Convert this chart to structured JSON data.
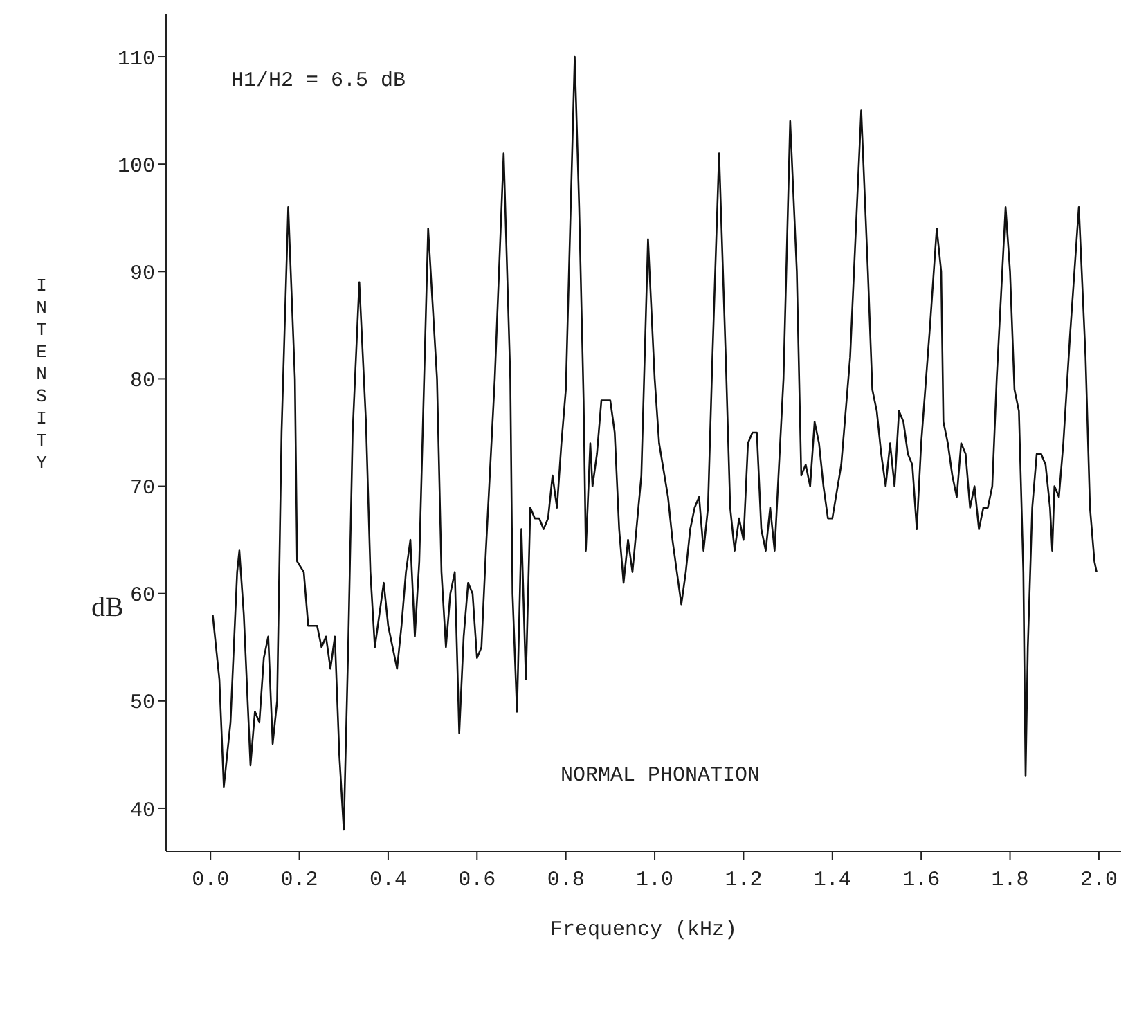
{
  "chart_data": {
    "type": "line",
    "xlabel": "Frequency (kHz)",
    "ylabel": "INTENSITY",
    "annotations": [
      "dB",
      "H1/H2 = 6.5 dB",
      "NORMAL PHONATION"
    ],
    "xlim": [
      -0.1,
      2.05
    ],
    "ylim": [
      36,
      114
    ],
    "xticks": [
      {
        "value": 0,
        "label": "0.0"
      },
      {
        "value": 0.2,
        "label": "0.2"
      },
      {
        "value": 0.4,
        "label": "0.4"
      },
      {
        "value": 0.6,
        "label": "0.6"
      },
      {
        "value": 0.8,
        "label": "0.8"
      },
      {
        "value": 1,
        "label": "1.0"
      },
      {
        "value": 1.2,
        "label": "1.2"
      },
      {
        "value": 1.4,
        "label": "1.4"
      },
      {
        "value": 1.6,
        "label": "1.6"
      },
      {
        "value": 1.8,
        "label": "1.8"
      },
      {
        "value": 2,
        "label": "2.0"
      }
    ],
    "yticks": [
      40,
      50,
      60,
      70,
      80,
      90,
      100,
      110
    ],
    "marker": "none",
    "line_style": "solid",
    "series": [
      {
        "color": "#111111",
        "x": [
          0.005,
          0.02,
          0.03,
          0.045,
          0.06,
          0.065,
          0.075,
          0.09,
          0.1,
          0.11,
          0.12,
          0.13,
          0.14,
          0.15,
          0.16,
          0.175,
          0.19,
          0.195,
          0.21,
          0.22,
          0.24,
          0.25,
          0.26,
          0.27,
          0.28,
          0.29,
          0.3,
          0.31,
          0.32,
          0.335,
          0.35,
          0.36,
          0.37,
          0.38,
          0.39,
          0.4,
          0.41,
          0.42,
          0.43,
          0.44,
          0.45,
          0.46,
          0.47,
          0.49,
          0.51,
          0.52,
          0.53,
          0.54,
          0.55,
          0.56,
          0.57,
          0.58,
          0.59,
          0.6,
          0.61,
          0.62,
          0.64,
          0.66,
          0.675,
          0.68,
          0.69,
          0.7,
          0.71,
          0.72,
          0.73,
          0.74,
          0.75,
          0.76,
          0.77,
          0.78,
          0.79,
          0.8,
          0.82,
          0.83,
          0.84,
          0.845,
          0.855,
          0.86,
          0.87,
          0.88,
          0.9,
          0.91,
          0.92,
          0.93,
          0.94,
          0.95,
          0.97,
          0.985,
          1,
          1.01,
          1.03,
          1.04,
          1.05,
          1.06,
          1.07,
          1.08,
          1.09,
          1.1,
          1.11,
          1.12,
          1.13,
          1.145,
          1.16,
          1.17,
          1.18,
          1.19,
          1.2,
          1.21,
          1.22,
          1.23,
          1.24,
          1.25,
          1.26,
          1.27,
          1.28,
          1.29,
          1.305,
          1.32,
          1.33,
          1.34,
          1.35,
          1.36,
          1.37,
          1.38,
          1.39,
          1.4,
          1.42,
          1.44,
          1.465,
          1.48,
          1.49,
          1.5,
          1.51,
          1.52,
          1.53,
          1.54,
          1.55,
          1.56,
          1.57,
          1.58,
          1.59,
          1.6,
          1.62,
          1.635,
          1.645,
          1.65,
          1.66,
          1.67,
          1.68,
          1.69,
          1.7,
          1.71,
          1.72,
          1.73,
          1.74,
          1.75,
          1.76,
          1.77,
          1.79,
          1.8,
          1.81,
          1.82,
          1.83,
          1.835,
          1.84,
          1.85,
          1.86,
          1.87,
          1.88,
          1.89,
          1.895,
          1.9,
          1.91,
          1.92,
          1.935,
          1.955,
          1.97,
          1.98,
          1.99,
          1.995
        ],
        "values": [
          58,
          52,
          42,
          48,
          62,
          64,
          58,
          44,
          49,
          48,
          54,
          56,
          46,
          50,
          75,
          96,
          80,
          63,
          62,
          57,
          57,
          55,
          56,
          53,
          56,
          45,
          38,
          55,
          75,
          89,
          76,
          62,
          55,
          58,
          61,
          57,
          55,
          53,
          57,
          62,
          65,
          56,
          63,
          94,
          80,
          62,
          55,
          60,
          62,
          47,
          56,
          61,
          60,
          54,
          55,
          64,
          80,
          101,
          80,
          60,
          49,
          66,
          52,
          68,
          67,
          67,
          66,
          67,
          71,
          68,
          74,
          79,
          110,
          96,
          78,
          64,
          74,
          70,
          73,
          78,
          78,
          75,
          66,
          61,
          65,
          62,
          71,
          93,
          80,
          74,
          69,
          65,
          62,
          59,
          62,
          66,
          68,
          69,
          64,
          68,
          82,
          101,
          82,
          68,
          64,
          67,
          65,
          74,
          75,
          75,
          66,
          64,
          68,
          64,
          72,
          80,
          104,
          90,
          71,
          72,
          70,
          76,
          74,
          70,
          67,
          67,
          72,
          82,
          105,
          90,
          79,
          77,
          73,
          70,
          74,
          70,
          77,
          76,
          73,
          72,
          66,
          74,
          85,
          94,
          90,
          76,
          74,
          71,
          69,
          74,
          73,
          68,
          70,
          66,
          68,
          68,
          70,
          80,
          96,
          90,
          79,
          77,
          62,
          43,
          55,
          68,
          73,
          73,
          72,
          68,
          64,
          70,
          69,
          74,
          84,
          96,
          82,
          68,
          63,
          62
        ]
      }
    ]
  }
}
